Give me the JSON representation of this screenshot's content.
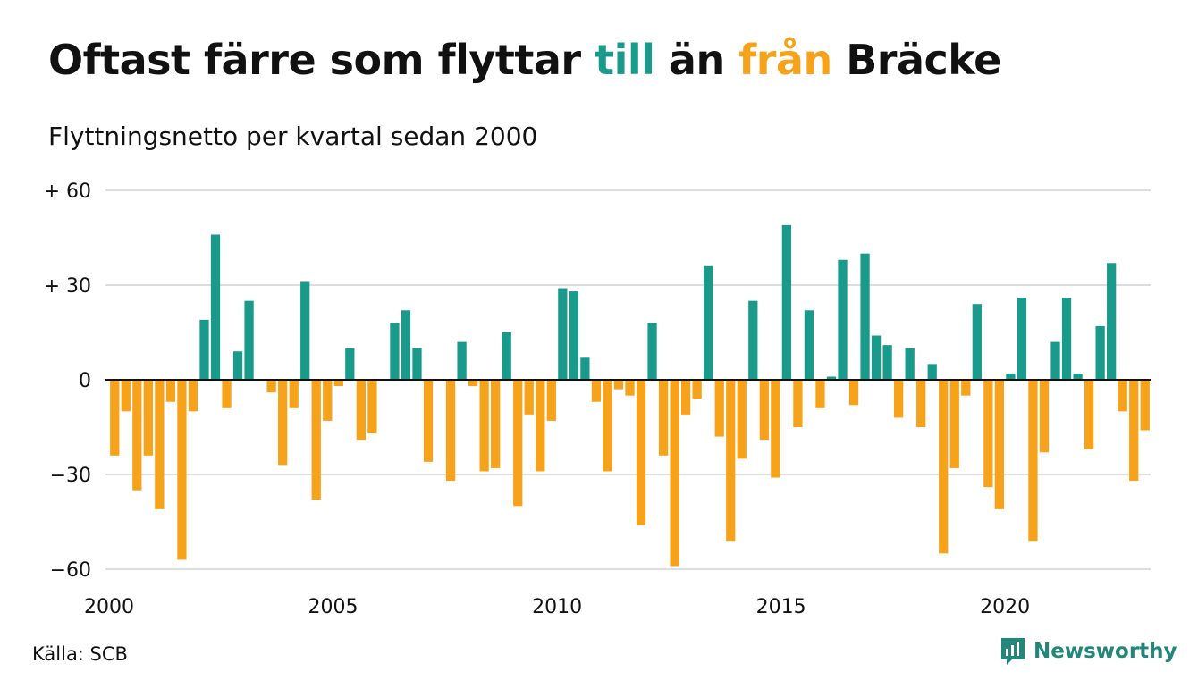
{
  "header": {
    "title_part1": "Oftast färre som flyttar ",
    "title_till": "till",
    "title_part2": " än ",
    "title_fran": "från",
    "title_part3": " Bräcke",
    "subtitle": "Flyttningsnetto per kvartal sedan 2000"
  },
  "footer": {
    "source": "Källa: SCB",
    "brand": "Newsworthy"
  },
  "colors": {
    "positive": "#1a9a8b",
    "negative": "#f7a21b",
    "brand": "#22867a"
  },
  "chart_data": {
    "type": "bar",
    "title": "Oftast färre som flyttar till än från Bräcke",
    "subtitle": "Flyttningsnetto per kvartal sedan 2000",
    "xlabel": "",
    "ylabel": "",
    "ylim": [
      -60,
      60
    ],
    "yticks": [
      60,
      30,
      0,
      -30,
      -60
    ],
    "ytick_labels": [
      "+ 60",
      "+ 30",
      "0",
      "−30",
      "−60"
    ],
    "xticks": [
      "2000",
      "2005",
      "2010",
      "2015",
      "2020"
    ],
    "start_period": "2000 Q1",
    "grid": true,
    "values": [
      -24,
      -10,
      -35,
      -24,
      -41,
      -7,
      -57,
      -10,
      19,
      46,
      -9,
      9,
      25,
      0,
      -4,
      -27,
      -9,
      31,
      -38,
      -13,
      -2,
      10,
      -19,
      -17,
      0,
      18,
      22,
      10,
      -26,
      0,
      -32,
      12,
      -2,
      -29,
      -28,
      15,
      -40,
      -11,
      -29,
      -13,
      29,
      28,
      7,
      -7,
      -29,
      -3,
      -5,
      -46,
      18,
      -24,
      -59,
      -11,
      -6,
      36,
      -18,
      -51,
      -25,
      25,
      -19,
      -31,
      49,
      -15,
      22,
      -9,
      1,
      38,
      -8,
      40,
      14,
      11,
      -12,
      10,
      -15,
      5,
      -55,
      -28,
      -5,
      24,
      -34,
      -41,
      2,
      26,
      -51,
      -23,
      12,
      26,
      2,
      -22,
      17,
      37,
      -10,
      -32,
      -16
    ]
  }
}
